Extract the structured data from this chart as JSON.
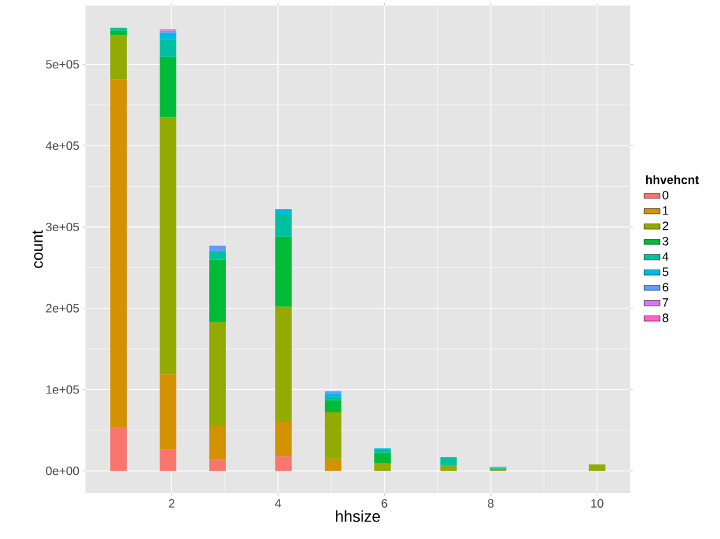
{
  "chart_data": {
    "type": "bar",
    "stacked": true,
    "xlabel": "hhsize",
    "ylabel": "count",
    "legend_title": "hhvehcnt",
    "legend": "right",
    "grid": true,
    "x": [
      1,
      1.931,
      2.862,
      4.103,
      5.034,
      5.966,
      7.207,
      8.138,
      10
    ],
    "xlim": [
      0.379,
      10.621
    ],
    "xticks": [
      2,
      4,
      6,
      8,
      10
    ],
    "ylim": [
      -27250,
      572250
    ],
    "yticks": [
      {
        "value": 0,
        "label": "0e+00"
      },
      {
        "value": 100000,
        "label": "1e+05"
      },
      {
        "value": 200000,
        "label": "2e+05"
      },
      {
        "value": 300000,
        "label": "3e+05"
      },
      {
        "value": 400000,
        "label": "4e+05"
      },
      {
        "value": 500000,
        "label": "5e+05"
      }
    ],
    "series": [
      {
        "name": "0",
        "color": "#f8766d",
        "values": [
          53000,
          26000,
          14000,
          18000,
          null,
          null,
          null,
          null,
          null
        ]
      },
      {
        "name": "1",
        "color": "#d39200",
        "values": [
          428000,
          93000,
          41000,
          42000,
          15000,
          null,
          null,
          null,
          null
        ]
      },
      {
        "name": "2",
        "color": "#93aa00",
        "values": [
          55000,
          316000,
          128000,
          142000,
          57000,
          9000,
          7000,
          2000,
          8000
        ]
      },
      {
        "name": "3",
        "color": "#00ba38",
        "values": [
          6000,
          74000,
          77000,
          86000,
          15000,
          13000,
          null,
          1000,
          null
        ]
      },
      {
        "name": "4",
        "color": "#00c19f",
        "values": [
          3000,
          22000,
          10000,
          29000,
          4000,
          5000,
          10000,
          1000,
          null
        ]
      },
      {
        "name": "5",
        "color": "#00b9e3",
        "values": [
          null,
          8000,
          null,
          5000,
          4000,
          1000,
          null,
          null,
          null
        ]
      },
      {
        "name": "6",
        "color": "#619cff",
        "values": [
          null,
          2000,
          7000,
          null,
          3000,
          null,
          null,
          1000,
          null
        ]
      },
      {
        "name": "7",
        "color": "#db72fb",
        "values": [
          null,
          1000,
          null,
          null,
          null,
          null,
          null,
          null,
          null
        ]
      },
      {
        "name": "8",
        "color": "#ff61c3",
        "values": [
          null,
          1000,
          null,
          null,
          null,
          null,
          null,
          null,
          null
        ]
      }
    ]
  }
}
